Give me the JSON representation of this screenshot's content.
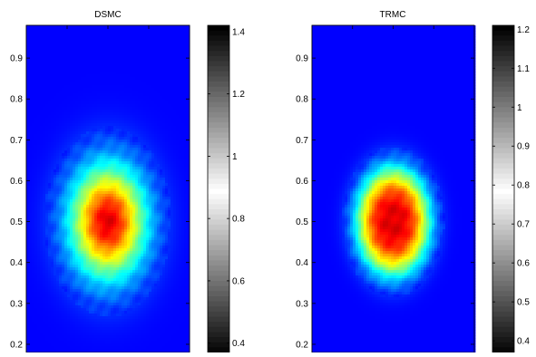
{
  "chart_data": [
    {
      "type": "heatmap",
      "title": "DSMC",
      "xlabel": "",
      "ylabel": "",
      "ylim": [
        0.18,
        0.98
      ],
      "yticks": [
        0.2,
        0.3,
        0.4,
        0.5,
        0.6,
        0.7,
        0.8,
        0.9
      ],
      "peak": {
        "y": 0.5,
        "y_spread": 0.095,
        "x_spread_frac": 0.16,
        "shape": "single-peak"
      },
      "heatmap_colormap": "jet",
      "colorbar": {
        "colormap": "gray",
        "range": [
          0.37,
          1.42
        ],
        "ticks": [
          0.4,
          0.6,
          0.8,
          1,
          1.2,
          1.4
        ]
      }
    },
    {
      "type": "heatmap",
      "title": "TRMC",
      "xlabel": "",
      "ylabel": "",
      "ylim": [
        0.18,
        0.98
      ],
      "yticks": [
        0.2,
        0.3,
        0.4,
        0.5,
        0.6,
        0.7,
        0.8,
        0.9
      ],
      "peak": {
        "y": 0.5,
        "y_spread": 0.105,
        "x_spread_frac": 0.18,
        "shape": "flat-top"
      },
      "heatmap_colormap": "jet",
      "colorbar": {
        "colormap": "gray",
        "range": [
          0.37,
          1.21
        ],
        "ticks": [
          0.4,
          0.5,
          0.6,
          0.7,
          0.8,
          0.9,
          1,
          1.1,
          1.2
        ]
      }
    }
  ]
}
